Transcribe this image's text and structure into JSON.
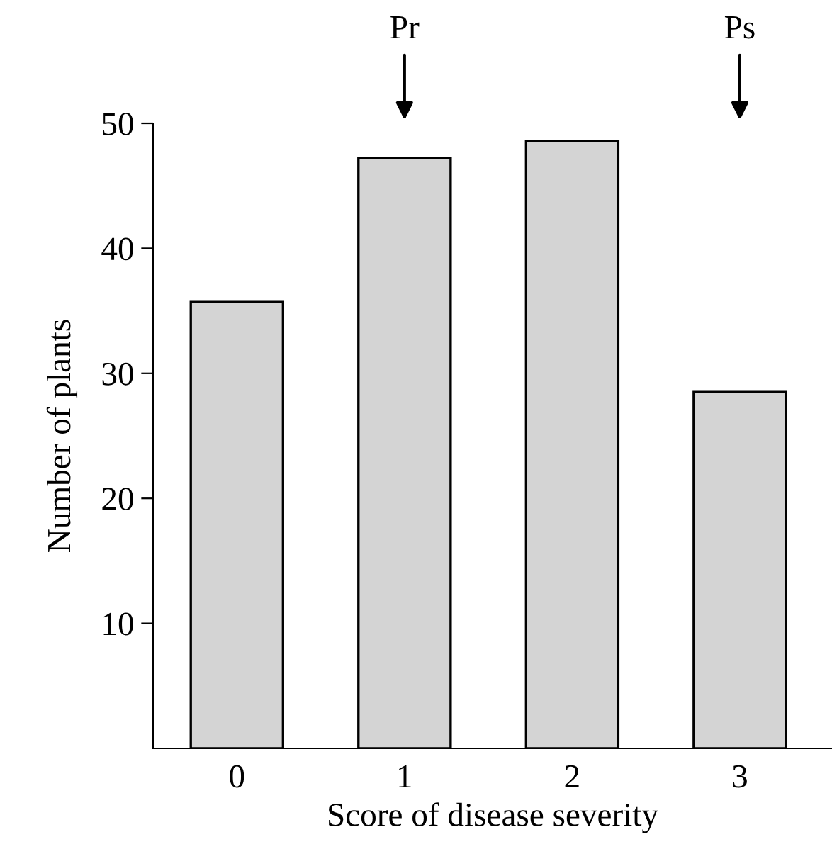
{
  "chart_data": {
    "type": "bar",
    "xlabel": "Score of disease severity",
    "ylabel": "Number of plants",
    "categories": [
      "0",
      "1",
      "2",
      "3"
    ],
    "values": [
      35.7,
      47.2,
      48.6,
      28.5
    ],
    "color": "#d4d4d4",
    "ylim": [
      0,
      50
    ],
    "yticks": [
      10,
      20,
      30,
      40,
      50
    ],
    "grid": false,
    "annotations": [
      "Pr",
      "Ps"
    ]
  }
}
